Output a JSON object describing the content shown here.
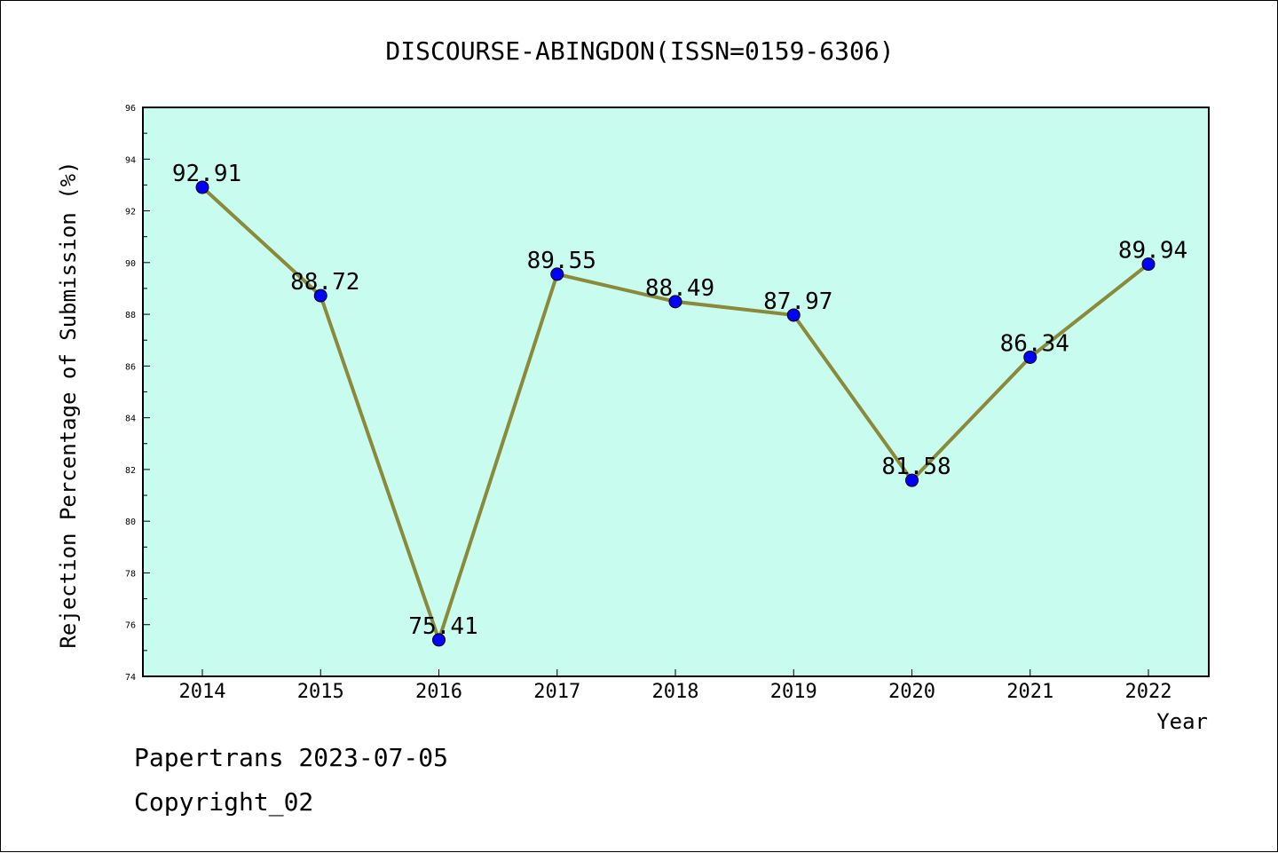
{
  "chart_data": {
    "type": "line",
    "title": "DISCOURSE-ABINGDON(ISSN=0159-6306)",
    "xlabel": "Year",
    "ylabel": "Rejection Percentage of Submission (%)",
    "x": [
      "2014",
      "2015",
      "2016",
      "2017",
      "2018",
      "2019",
      "2020",
      "2021",
      "2022"
    ],
    "series": [
      {
        "values": [
          92.91,
          88.72,
          75.41,
          89.55,
          88.49,
          87.97,
          81.58,
          86.34,
          89.94
        ],
        "labels": [
          "92.91",
          "88.72",
          "75.41",
          "89.55",
          "88.49",
          "87.97",
          "81.58",
          "86.34",
          "89.94"
        ]
      }
    ],
    "ylim": [
      74,
      96
    ],
    "yticks": [
      74,
      76,
      78,
      80,
      82,
      84,
      86,
      88,
      90,
      92,
      94,
      96
    ],
    "grid": false,
    "colors": {
      "plot_background": "#c8fcee",
      "line": "#8b8a3a",
      "marker": "#0000ff"
    }
  },
  "footer": {
    "line1": "Papertrans 2023-07-05",
    "line2": "Copyright_02"
  }
}
